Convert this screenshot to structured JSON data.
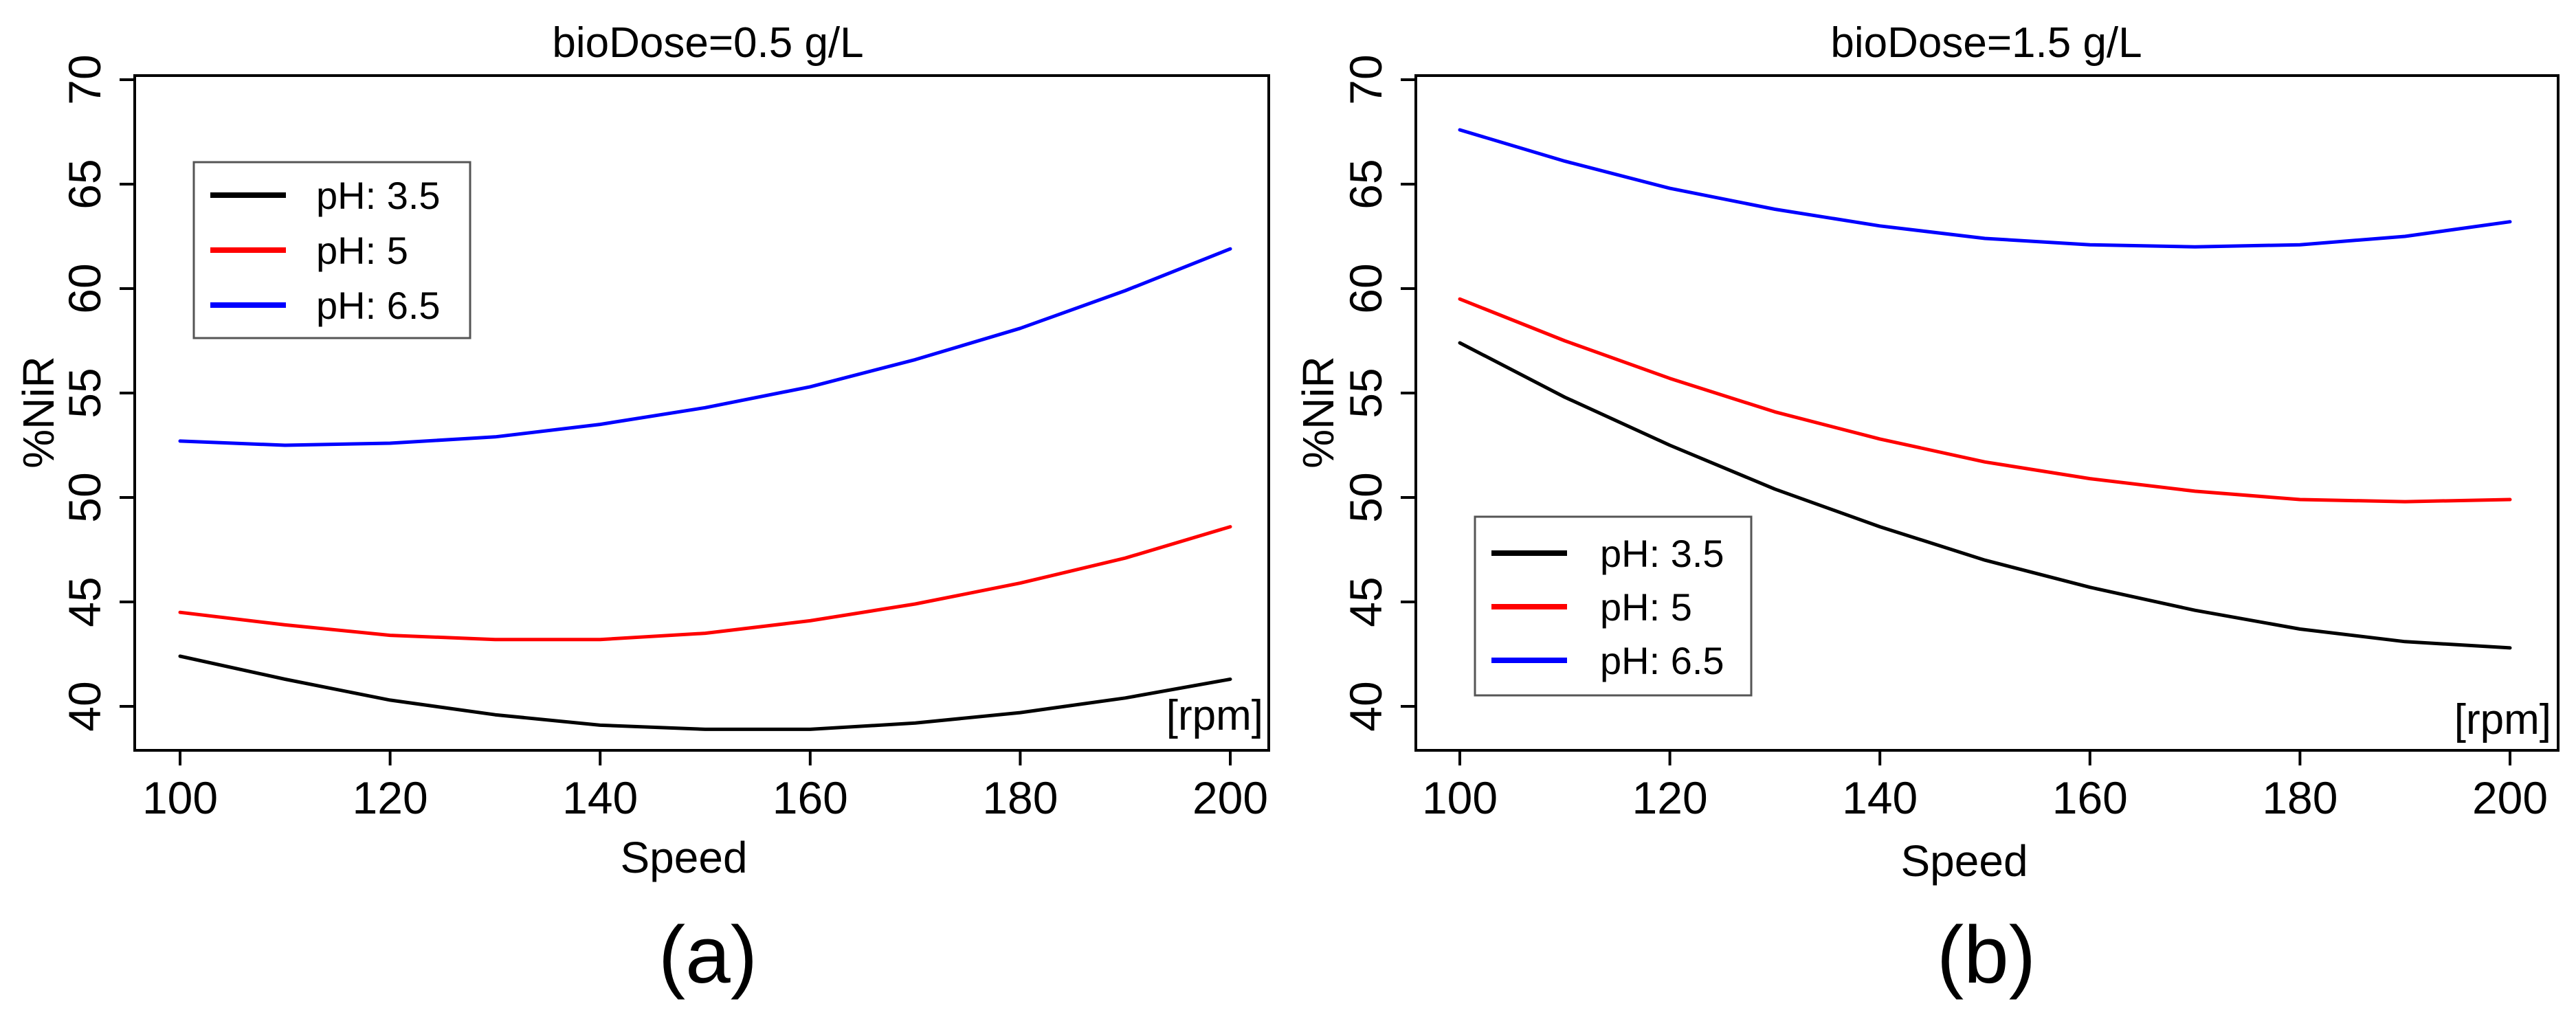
{
  "chart_data": [
    {
      "type": "line",
      "title": "bioDose=0.5 g/L",
      "xlabel": "Speed",
      "ylabel": "%NiR",
      "unit": "[rpm]",
      "caption": "(a)",
      "xlim": [
        100,
        200
      ],
      "ylim": [
        38,
        70
      ],
      "xticks": [
        100,
        120,
        140,
        160,
        180,
        200
      ],
      "yticks": [
        40,
        45,
        50,
        55,
        60,
        65,
        70
      ],
      "legend_position": "top-left",
      "x": [
        100,
        110,
        120,
        130,
        140,
        150,
        160,
        170,
        180,
        190,
        200
      ],
      "series": [
        {
          "name": "pH:  3.5",
          "color": "#000000",
          "values": [
            42.4,
            41.3,
            40.3,
            39.6,
            39.1,
            38.9,
            38.9,
            39.2,
            39.7,
            40.4,
            41.3
          ]
        },
        {
          "name": "pH:  5",
          "color": "#ff0000",
          "values": [
            44.5,
            43.9,
            43.4,
            43.2,
            43.2,
            43.5,
            44.1,
            44.9,
            45.9,
            47.1,
            48.6
          ]
        },
        {
          "name": "pH:  6.5",
          "color": "#0000ff",
          "values": [
            52.7,
            52.5,
            52.6,
            52.9,
            53.5,
            54.3,
            55.3,
            56.6,
            58.1,
            59.9,
            61.9
          ]
        }
      ]
    },
    {
      "type": "line",
      "title": "bioDose=1.5 g/L",
      "xlabel": "Speed",
      "ylabel": "%NiR",
      "unit": "[rpm]",
      "caption": "(b)",
      "xlim": [
        100,
        200
      ],
      "ylim": [
        38,
        70
      ],
      "xticks": [
        100,
        120,
        140,
        160,
        180,
        200
      ],
      "yticks": [
        40,
        45,
        50,
        55,
        60,
        65,
        70
      ],
      "legend_position": "bottom-left",
      "x": [
        100,
        110,
        120,
        130,
        140,
        150,
        160,
        170,
        180,
        190,
        200
      ],
      "series": [
        {
          "name": "pH:  3.5",
          "color": "#000000",
          "values": [
            57.4,
            54.8,
            52.5,
            50.4,
            48.6,
            47.0,
            45.7,
            44.6,
            43.7,
            43.1,
            42.8
          ]
        },
        {
          "name": "pH:  5",
          "color": "#ff0000",
          "values": [
            59.5,
            57.5,
            55.7,
            54.1,
            52.8,
            51.7,
            50.9,
            50.3,
            49.9,
            49.8,
            49.9
          ]
        },
        {
          "name": "pH:  6.5",
          "color": "#0000ff",
          "values": [
            67.6,
            66.1,
            64.8,
            63.8,
            63.0,
            62.4,
            62.1,
            62.0,
            62.1,
            62.5,
            63.2
          ]
        }
      ]
    }
  ]
}
